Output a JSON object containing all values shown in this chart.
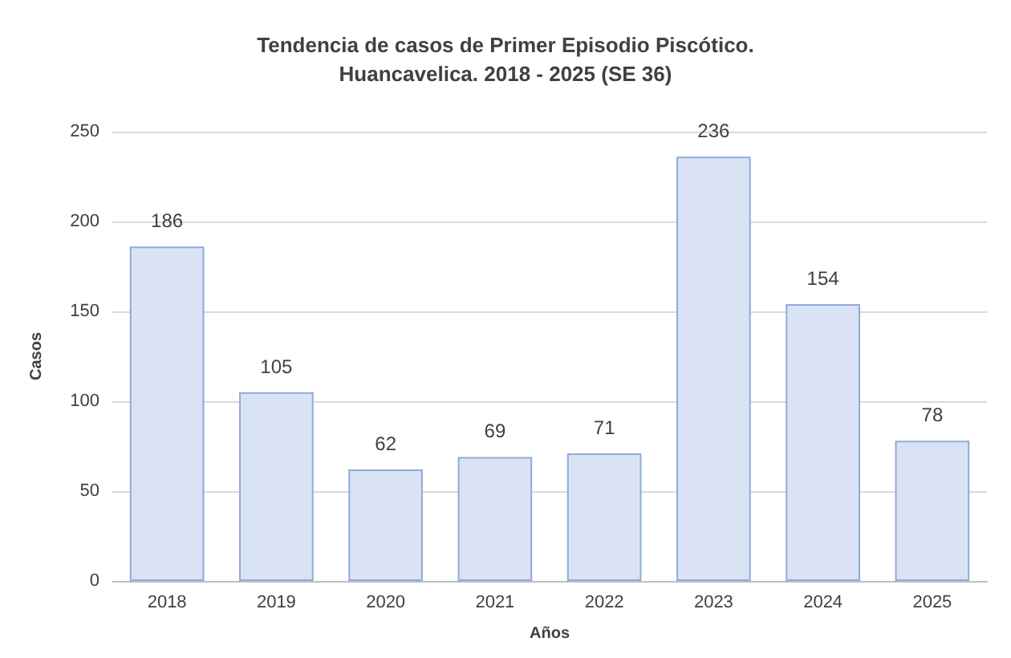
{
  "chart_data": {
    "type": "bar",
    "title": "Tendencia de casos de Primer Episodio Piscótico.\nHuancavelica. 2018 - 2025 (SE 36)",
    "xlabel": "Años",
    "ylabel": "Casos",
    "categories": [
      "2018",
      "2019",
      "2020",
      "2021",
      "2022",
      "2023",
      "2024",
      "2025"
    ],
    "values": [
      186,
      105,
      62,
      69,
      71,
      236,
      154,
      78
    ],
    "color": "#dae3f3",
    "ylim": [
      0,
      250
    ],
    "yticks": [
      0,
      50,
      100,
      150,
      200,
      250
    ],
    "grid": "y",
    "data_labels": true
  }
}
